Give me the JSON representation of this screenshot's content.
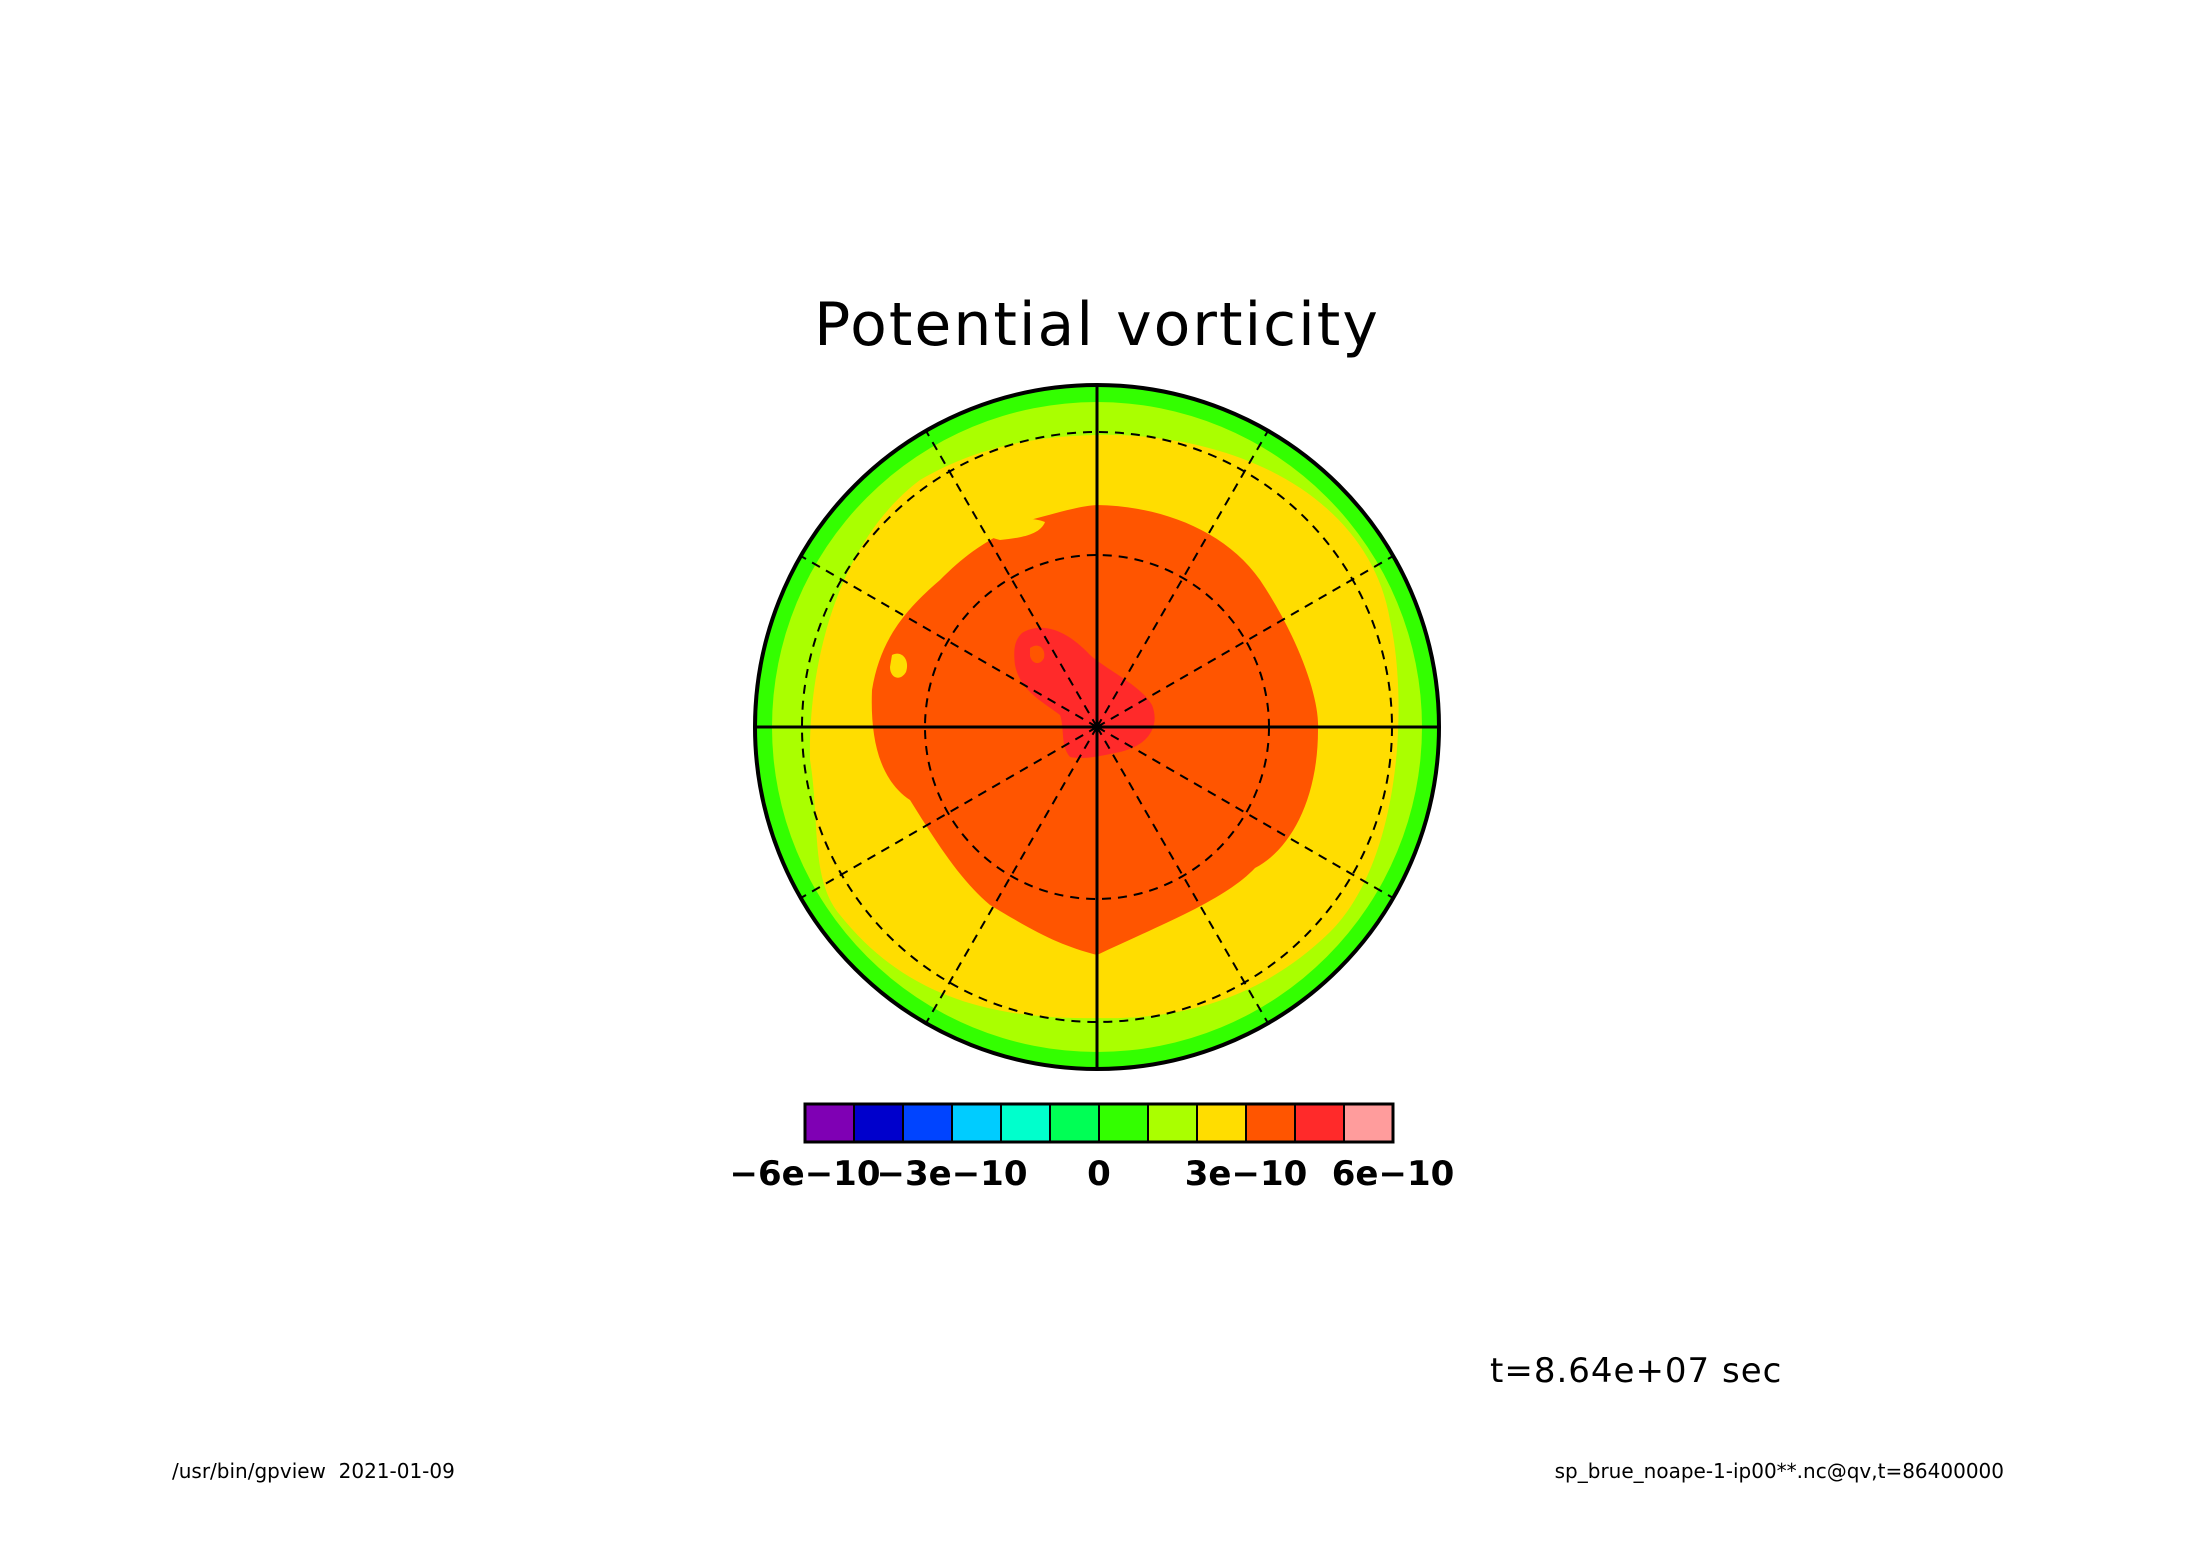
{
  "chart_data": {
    "type": "heatmap",
    "projection": "polar-stereographic",
    "title": "Potential vorticity",
    "variable": "qv",
    "colorbar": {
      "colors": [
        "#7f00b4",
        "#0000cc",
        "#0044ff",
        "#00ccff",
        "#00ffcc",
        "#00ff55",
        "#33ff00",
        "#aaff00",
        "#ffdd00",
        "#ff5500",
        "#ff2a2a",
        "#ff9c9c"
      ],
      "boundaries": [
        -6e-10,
        -5e-10,
        -4e-10,
        -3e-10,
        -2e-10,
        -1e-10,
        0,
        1e-10,
        2e-10,
        3e-10,
        4e-10,
        5e-10,
        6e-10
      ],
      "tick_values": [
        -6e-10,
        -3e-10,
        0,
        3e-10,
        6e-10
      ],
      "tick_labels": [
        "−6e−10",
        "−3e−10",
        "0",
        "3e−10",
        "6e−10"
      ]
    },
    "field_bands": [
      {
        "level": "0 to 1e-10",
        "color": "#33ff00"
      },
      {
        "level": "1e-10 to 2e-10",
        "color": "#aaff00"
      },
      {
        "level": "2e-10 to 3e-10",
        "color": "#ffdd00"
      },
      {
        "level": "3e-10 to 4e-10",
        "color": "#ff5500"
      },
      {
        "level": "4e-10 to 5e-10",
        "color": "#ff2a2a"
      }
    ],
    "grid": true,
    "meridian_spacing_deg": 30,
    "latitude_circles": 3,
    "time_label": "t=8.64e+07 sec"
  },
  "footer": {
    "left": "/usr/bin/gpview  2021-01-09",
    "right": "sp_brue_noape-1-ip00**.nc@qv,t=86400000"
  }
}
